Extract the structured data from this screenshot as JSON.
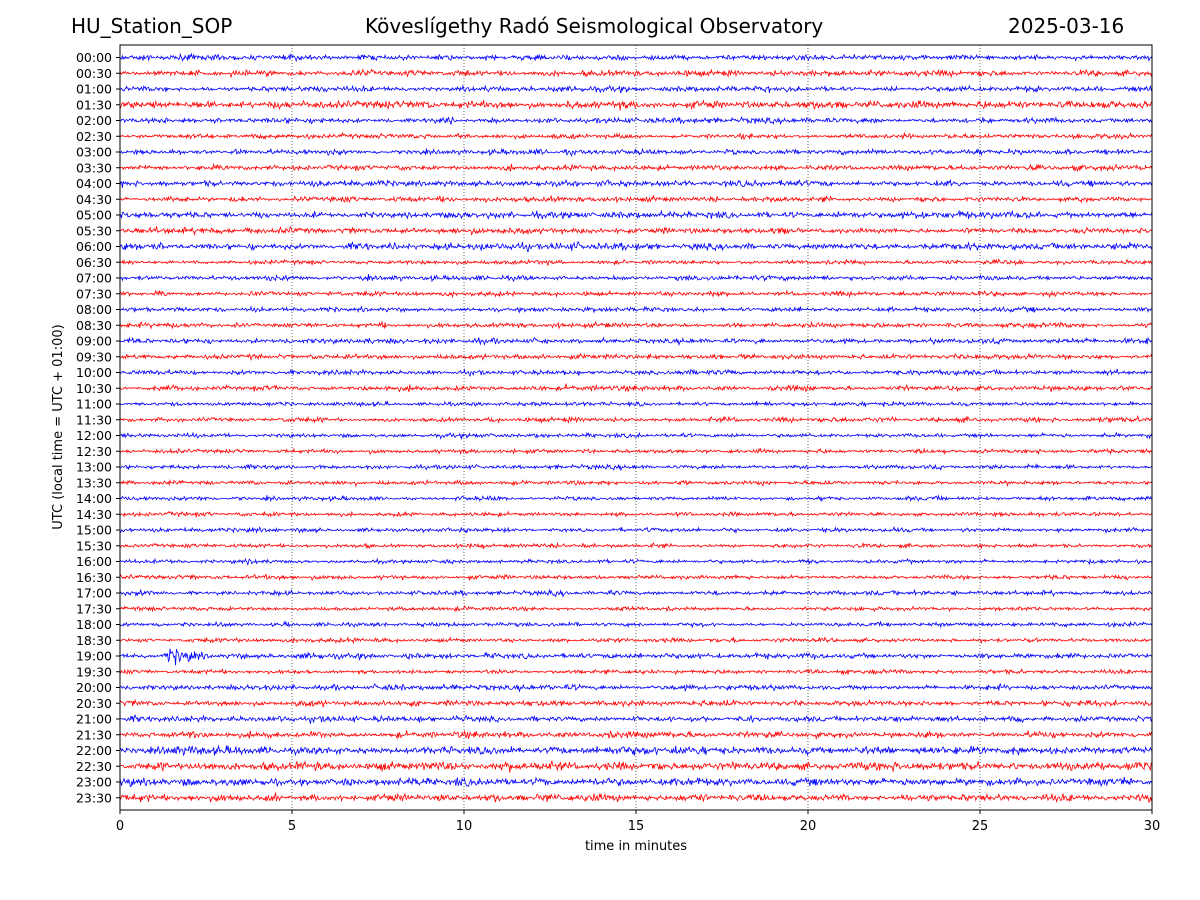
{
  "header": {
    "station": "HU_Station_SOP",
    "title": "Köveslígethy Radó Seismological Observatory",
    "date": "2025-03-16"
  },
  "chart_data": {
    "type": "line",
    "subtype": "helicorder",
    "xlabel": "time in minutes",
    "ylabel": "UTC (local time = UTC + 01:00)",
    "xlim": [
      0,
      30
    ],
    "x_ticks": [
      0,
      5,
      10,
      15,
      20,
      25,
      30
    ],
    "x_tick_labels": [
      "0",
      "5",
      "10",
      "15",
      "20",
      "25",
      "30"
    ],
    "row_labels": [
      "00:00",
      "00:30",
      "01:00",
      "01:30",
      "02:00",
      "02:30",
      "03:00",
      "03:30",
      "04:00",
      "04:30",
      "05:00",
      "05:30",
      "06:00",
      "06:30",
      "07:00",
      "07:30",
      "08:00",
      "08:30",
      "09:00",
      "09:30",
      "10:00",
      "10:30",
      "11:00",
      "11:30",
      "12:00",
      "12:30",
      "13:00",
      "13:30",
      "14:00",
      "14:30",
      "15:00",
      "15:30",
      "16:00",
      "16:30",
      "17:00",
      "17:30",
      "18:00",
      "18:30",
      "19:00",
      "19:30",
      "20:00",
      "20:30",
      "21:00",
      "21:30",
      "22:00",
      "22:30",
      "23:00",
      "23:30"
    ],
    "trace_colors": [
      "#0000ff",
      "#ff0000"
    ],
    "vertical_grid": "dotted",
    "noise_level": [
      0.9,
      1.0,
      0.9,
      1.3,
      0.9,
      0.8,
      0.9,
      0.9,
      1.0,
      0.9,
      1.1,
      1.0,
      1.2,
      0.7,
      0.8,
      0.8,
      0.8,
      0.8,
      0.9,
      0.8,
      0.8,
      0.9,
      0.7,
      0.8,
      0.7,
      0.7,
      0.7,
      0.7,
      0.7,
      0.7,
      0.7,
      0.7,
      0.7,
      0.7,
      0.8,
      0.7,
      0.7,
      0.7,
      0.9,
      0.7,
      0.9,
      1.0,
      1.0,
      1.1,
      1.4,
      1.4,
      1.3,
      1.2
    ],
    "events": [
      {
        "row": "19:00",
        "start_min": 1.2,
        "end_min": 3.6,
        "peak_min": 1.5,
        "amplitude": 9
      }
    ]
  }
}
